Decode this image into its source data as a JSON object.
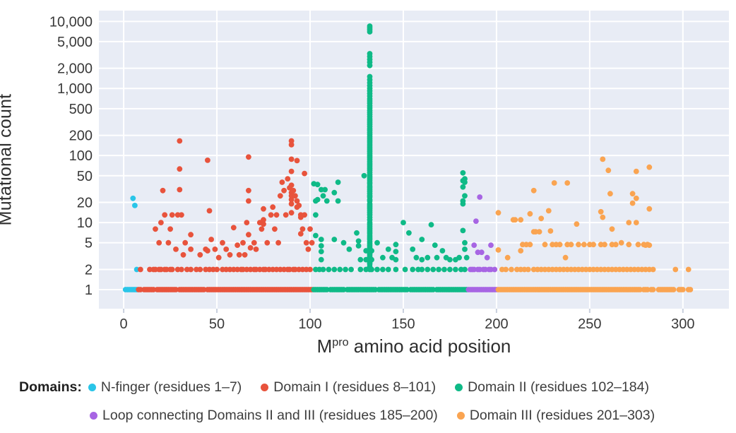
{
  "chart_data": {
    "type": "scatter",
    "title": "",
    "xlabel_parts": {
      "pre": "M",
      "sup": "pro",
      "post": " amino acid position"
    },
    "ylabel": "Mutational count",
    "y_scale": "log",
    "xlim": [
      -13.3,
      324.7
    ],
    "ylim": [
      0.52,
      14500
    ],
    "x_ticks": [
      0,
      50,
      100,
      150,
      200,
      250,
      300
    ],
    "y_ticks": [
      {
        "value": 10000,
        "label": "10,000"
      },
      {
        "value": 5000,
        "label": "5,000"
      },
      {
        "value": 2000,
        "label": "2,000"
      },
      {
        "value": 1000,
        "label": "1,000"
      },
      {
        "value": 500,
        "label": "500"
      },
      {
        "value": 200,
        "label": "200"
      },
      {
        "value": 100,
        "label": "100"
      },
      {
        "value": 50,
        "label": "50"
      },
      {
        "value": 20,
        "label": "20"
      },
      {
        "value": 10,
        "label": "10"
      },
      {
        "value": 5,
        "label": "5"
      },
      {
        "value": 2,
        "label": "2"
      },
      {
        "value": 1,
        "label": "1"
      }
    ],
    "grid": true,
    "plot_bg": "#e8ecf5",
    "grid_color": "#ffffff",
    "tick_text_color": "#3a3a3a",
    "marker_radius": 3.9,
    "series": [
      {
        "name": "N-finger (residues 1–7)",
        "color": "#29c5e8",
        "runs_y1": [
          [
            1,
            7
          ]
        ],
        "y2_positions": [
          7
        ],
        "points": [
          [
            5,
            23
          ],
          [
            6,
            18
          ]
        ]
      },
      {
        "name": "Domain I (residues 8–101)",
        "color": "#e8533c",
        "runs_y1": [
          [
            8,
            9
          ],
          [
            11,
            16
          ],
          [
            18,
            28
          ],
          [
            30,
            43
          ],
          [
            45,
            101
          ]
        ],
        "y2_positions": [
          9,
          14,
          16,
          17,
          19,
          20,
          22,
          23,
          25,
          26,
          29,
          31,
          34,
          36,
          39,
          41,
          44,
          46,
          48,
          50,
          53,
          55,
          57,
          59,
          61,
          63,
          64,
          66,
          68,
          70,
          71,
          73,
          75,
          76,
          78,
          80,
          82,
          84,
          86,
          88,
          89,
          91,
          92,
          94,
          96,
          98,
          100
        ],
        "points": [
          [
            17,
            8
          ],
          [
            19,
            5
          ],
          [
            20,
            10
          ],
          [
            21,
            30
          ],
          [
            22,
            13
          ],
          [
            24,
            5
          ],
          [
            25,
            8
          ],
          [
            26,
            13
          ],
          [
            28,
            4
          ],
          [
            29,
            13
          ],
          [
            30,
            165
          ],
          [
            30,
            63
          ],
          [
            30,
            31
          ],
          [
            31,
            13
          ],
          [
            32,
            3.3
          ],
          [
            33,
            5
          ],
          [
            36,
            6.6
          ],
          [
            36,
            4
          ],
          [
            41,
            3.3
          ],
          [
            44,
            4
          ],
          [
            45,
            85
          ],
          [
            45,
            3.8
          ],
          [
            46,
            15
          ],
          [
            47,
            5.6
          ],
          [
            49,
            4
          ],
          [
            51,
            3
          ],
          [
            53,
            5
          ],
          [
            55,
            4
          ],
          [
            57,
            3.3
          ],
          [
            59,
            8.4
          ],
          [
            61,
            4.6
          ],
          [
            62,
            3.3
          ],
          [
            64,
            5
          ],
          [
            65,
            3.3
          ],
          [
            66,
            10
          ],
          [
            67,
            95
          ],
          [
            67,
            30
          ],
          [
            67,
            21
          ],
          [
            67,
            6.6
          ],
          [
            68,
            4.2
          ],
          [
            70,
            5
          ],
          [
            71,
            4
          ],
          [
            73,
            10
          ],
          [
            74,
            8
          ],
          [
            75,
            16
          ],
          [
            75,
            11
          ],
          [
            75,
            9.5
          ],
          [
            77,
            5
          ],
          [
            79,
            13
          ],
          [
            80,
            17
          ],
          [
            81,
            8
          ],
          [
            82,
            13
          ],
          [
            83,
            5
          ],
          [
            84,
            25
          ],
          [
            85,
            40
          ],
          [
            86,
            30
          ],
          [
            87,
            13
          ],
          [
            88,
            45
          ],
          [
            89,
            33
          ],
          [
            90,
            165
          ],
          [
            90,
            145
          ],
          [
            90,
            88
          ],
          [
            90,
            58
          ],
          [
            90,
            36
          ],
          [
            90,
            28
          ],
          [
            90,
            25
          ],
          [
            90,
            22
          ],
          [
            90,
            19
          ],
          [
            90,
            14
          ],
          [
            91,
            30
          ],
          [
            92,
            25
          ],
          [
            93,
            84
          ],
          [
            93,
            21
          ],
          [
            93,
            17
          ],
          [
            94,
            18
          ],
          [
            95,
            13
          ],
          [
            95,
            12
          ],
          [
            95,
            6.8
          ],
          [
            96,
            8
          ],
          [
            97,
            54
          ],
          [
            97,
            13
          ],
          [
            98,
            5
          ],
          [
            99,
            4
          ],
          [
            100,
            8
          ],
          [
            101,
            5
          ]
        ]
      },
      {
        "name": "Domain II (residues 102–184)",
        "color": "#0fba87",
        "runs_y1": [
          [
            102,
            109
          ],
          [
            111,
            118
          ],
          [
            120,
            135
          ],
          [
            137,
            152
          ],
          [
            154,
            166
          ],
          [
            168,
            184
          ]
        ],
        "y2_positions": [
          103,
          105,
          107,
          110,
          113,
          116,
          119,
          122,
          127,
          130,
          133,
          136,
          139,
          142,
          146,
          151,
          155,
          158,
          160,
          163,
          166,
          169,
          172,
          175,
          178,
          181,
          183
        ],
        "points": [
          [
            102,
            38
          ],
          [
            103,
            21
          ],
          [
            103,
            13
          ],
          [
            103,
            6.4
          ],
          [
            104,
            37
          ],
          [
            104,
            22
          ],
          [
            106,
            31
          ],
          [
            106,
            5.6
          ],
          [
            106,
            4.5
          ],
          [
            106,
            3.7
          ],
          [
            106,
            2.8
          ],
          [
            107,
            25
          ],
          [
            108,
            31
          ],
          [
            109,
            21
          ],
          [
            113,
            28
          ],
          [
            113,
            5.6
          ],
          [
            115,
            40
          ],
          [
            115,
            21
          ],
          [
            118,
            5
          ],
          [
            121,
            4
          ],
          [
            125,
            7
          ],
          [
            126,
            5.3
          ],
          [
            126,
            4.5
          ],
          [
            127,
            2.8
          ],
          [
            129,
            50
          ],
          [
            130,
            3.8
          ],
          [
            130,
            2.8
          ],
          [
            133,
            3.8
          ],
          [
            133,
            2.8
          ],
          [
            136,
            5
          ],
          [
            139,
            3
          ],
          [
            142,
            4
          ],
          [
            144,
            3
          ],
          [
            146,
            4.7
          ],
          [
            146,
            3.7
          ],
          [
            146,
            2.8
          ],
          [
            150,
            10
          ],
          [
            153,
            7
          ],
          [
            155,
            4
          ],
          [
            157,
            3
          ],
          [
            160,
            5.6
          ],
          [
            160,
            2.8
          ],
          [
            163,
            3
          ],
          [
            165,
            9.3
          ],
          [
            167,
            4.6
          ],
          [
            168,
            3
          ],
          [
            171,
            3.8
          ],
          [
            173,
            3
          ],
          [
            175,
            2.8
          ],
          [
            178,
            2.8
          ],
          [
            180,
            3
          ],
          [
            182,
            55
          ],
          [
            182,
            42
          ],
          [
            182,
            34
          ],
          [
            182,
            21
          ],
          [
            182,
            19
          ],
          [
            182,
            7.6
          ],
          [
            183,
            45
          ],
          [
            183,
            40
          ],
          [
            183,
            25
          ],
          [
            183,
            5
          ],
          [
            183,
            4
          ],
          [
            184,
            3
          ]
        ],
        "column_x": 132,
        "column_values": [
          8500,
          8000,
          7500,
          7000,
          3300,
          3000,
          2700,
          2450,
          2200,
          1500,
          1350,
          1220,
          1100,
          1000,
          920,
          840,
          770,
          700,
          650,
          600,
          550,
          510,
          470,
          440,
          410,
          380,
          350,
          330,
          310,
          290,
          270,
          252,
          236,
          220,
          206,
          193,
          180,
          169,
          158,
          148,
          139,
          130,
          122,
          114,
          107,
          100,
          94,
          88,
          82,
          77,
          72,
          68,
          64,
          60,
          56,
          52,
          49,
          46,
          43,
          40,
          38,
          35,
          33,
          31,
          29,
          27,
          25,
          24,
          22,
          21,
          19,
          18,
          17,
          16,
          15,
          14,
          13,
          12,
          11,
          10,
          9.4,
          8.8,
          8.2,
          7.7,
          7.2,
          6.8,
          6.3,
          5.9,
          5.6,
          5.2,
          4.9,
          4.6,
          4.3,
          4,
          3.8,
          3.5,
          3.3,
          3.1,
          2.9,
          2.7,
          2.5,
          2.4,
          2.2,
          2.1,
          2
        ]
      },
      {
        "name": "Loop connecting Domains II and III (residues 185–200)",
        "color": "#a765e3",
        "runs_y1": [
          [
            185,
            200
          ]
        ],
        "y2_positions": [
          186,
          187,
          188,
          190,
          191,
          193,
          194,
          196,
          197,
          199
        ],
        "points": [
          [
            191,
            24
          ],
          [
            189,
            10.5
          ],
          [
            188,
            4.6
          ],
          [
            197,
            4.6
          ],
          [
            190,
            3.6
          ],
          [
            192,
            3.6
          ],
          [
            195,
            3
          ]
        ]
      },
      {
        "name": "Domain III (residues 201–303)",
        "color": "#faa451",
        "runs_y1": [
          [
            201,
            277
          ],
          [
            279,
            281
          ],
          [
            283,
            284
          ],
          [
            287,
            295
          ],
          [
            298,
            300
          ],
          [
            303,
            304
          ]
        ],
        "y2_positions": [
          203,
          205,
          208,
          211,
          213,
          215,
          217,
          220,
          222,
          224,
          226,
          228,
          230,
          232,
          234,
          236,
          238,
          240,
          242,
          244,
          246,
          248,
          250,
          252,
          254,
          256,
          258,
          260,
          262,
          264,
          266,
          268,
          270,
          272,
          274,
          276,
          278,
          280,
          282,
          284,
          296,
          303
        ],
        "points": [
          [
            201,
            14
          ],
          [
            201,
            3.9
          ],
          [
            206,
            3
          ],
          [
            209,
            11
          ],
          [
            210,
            11
          ],
          [
            213,
            11
          ],
          [
            213,
            3.8
          ],
          [
            214,
            4.7
          ],
          [
            216,
            4.7
          ],
          [
            218,
            13.5
          ],
          [
            218,
            4.7
          ],
          [
            220,
            30
          ],
          [
            220,
            7.3
          ],
          [
            221,
            7.3
          ],
          [
            223,
            7.3
          ],
          [
            224,
            11.5
          ],
          [
            226,
            4.7
          ],
          [
            228,
            15
          ],
          [
            229,
            7.5
          ],
          [
            230,
            4.7
          ],
          [
            231,
            39
          ],
          [
            232,
            4.7
          ],
          [
            234,
            4.7
          ],
          [
            237,
            3
          ],
          [
            238,
            39
          ],
          [
            238,
            4.7
          ],
          [
            240,
            4.7
          ],
          [
            243,
            9.5
          ],
          [
            244,
            4.7
          ],
          [
            247,
            4.7
          ],
          [
            250,
            4.7
          ],
          [
            252,
            4.7
          ],
          [
            256,
            14.5
          ],
          [
            256,
            4.7
          ],
          [
            257,
            88
          ],
          [
            257,
            12
          ],
          [
            258,
            4.7
          ],
          [
            260,
            60
          ],
          [
            261,
            27
          ],
          [
            262,
            8
          ],
          [
            262,
            4.7
          ],
          [
            264,
            4.7
          ],
          [
            267,
            5
          ],
          [
            271,
            10
          ],
          [
            271,
            4.7
          ],
          [
            273,
            27
          ],
          [
            273,
            19.5
          ],
          [
            275,
            58
          ],
          [
            275,
            23
          ],
          [
            275,
            10
          ],
          [
            276,
            4.7
          ],
          [
            279,
            4.7
          ],
          [
            280,
            4.6
          ],
          [
            281,
            4.7
          ],
          [
            282,
            67
          ],
          [
            282,
            16
          ],
          [
            282,
            4.6
          ]
        ]
      }
    ],
    "legend": {
      "title": "Domains:",
      "rows": [
        [
          0,
          1,
          2
        ],
        [
          3,
          4
        ]
      ],
      "items": [
        {
          "label": "N-finger (residues 1–7)",
          "color": "#29c5e8"
        },
        {
          "label": "Domain I (residues 8–101)",
          "color": "#e8533c"
        },
        {
          "label": "Domain II (residues 102–184)",
          "color": "#0fba87"
        },
        {
          "label": "Loop connecting Domains II and III (residues 185–200)",
          "color": "#a765e3"
        },
        {
          "label": "Domain III (residues 201–303)",
          "color": "#faa451"
        }
      ]
    }
  }
}
